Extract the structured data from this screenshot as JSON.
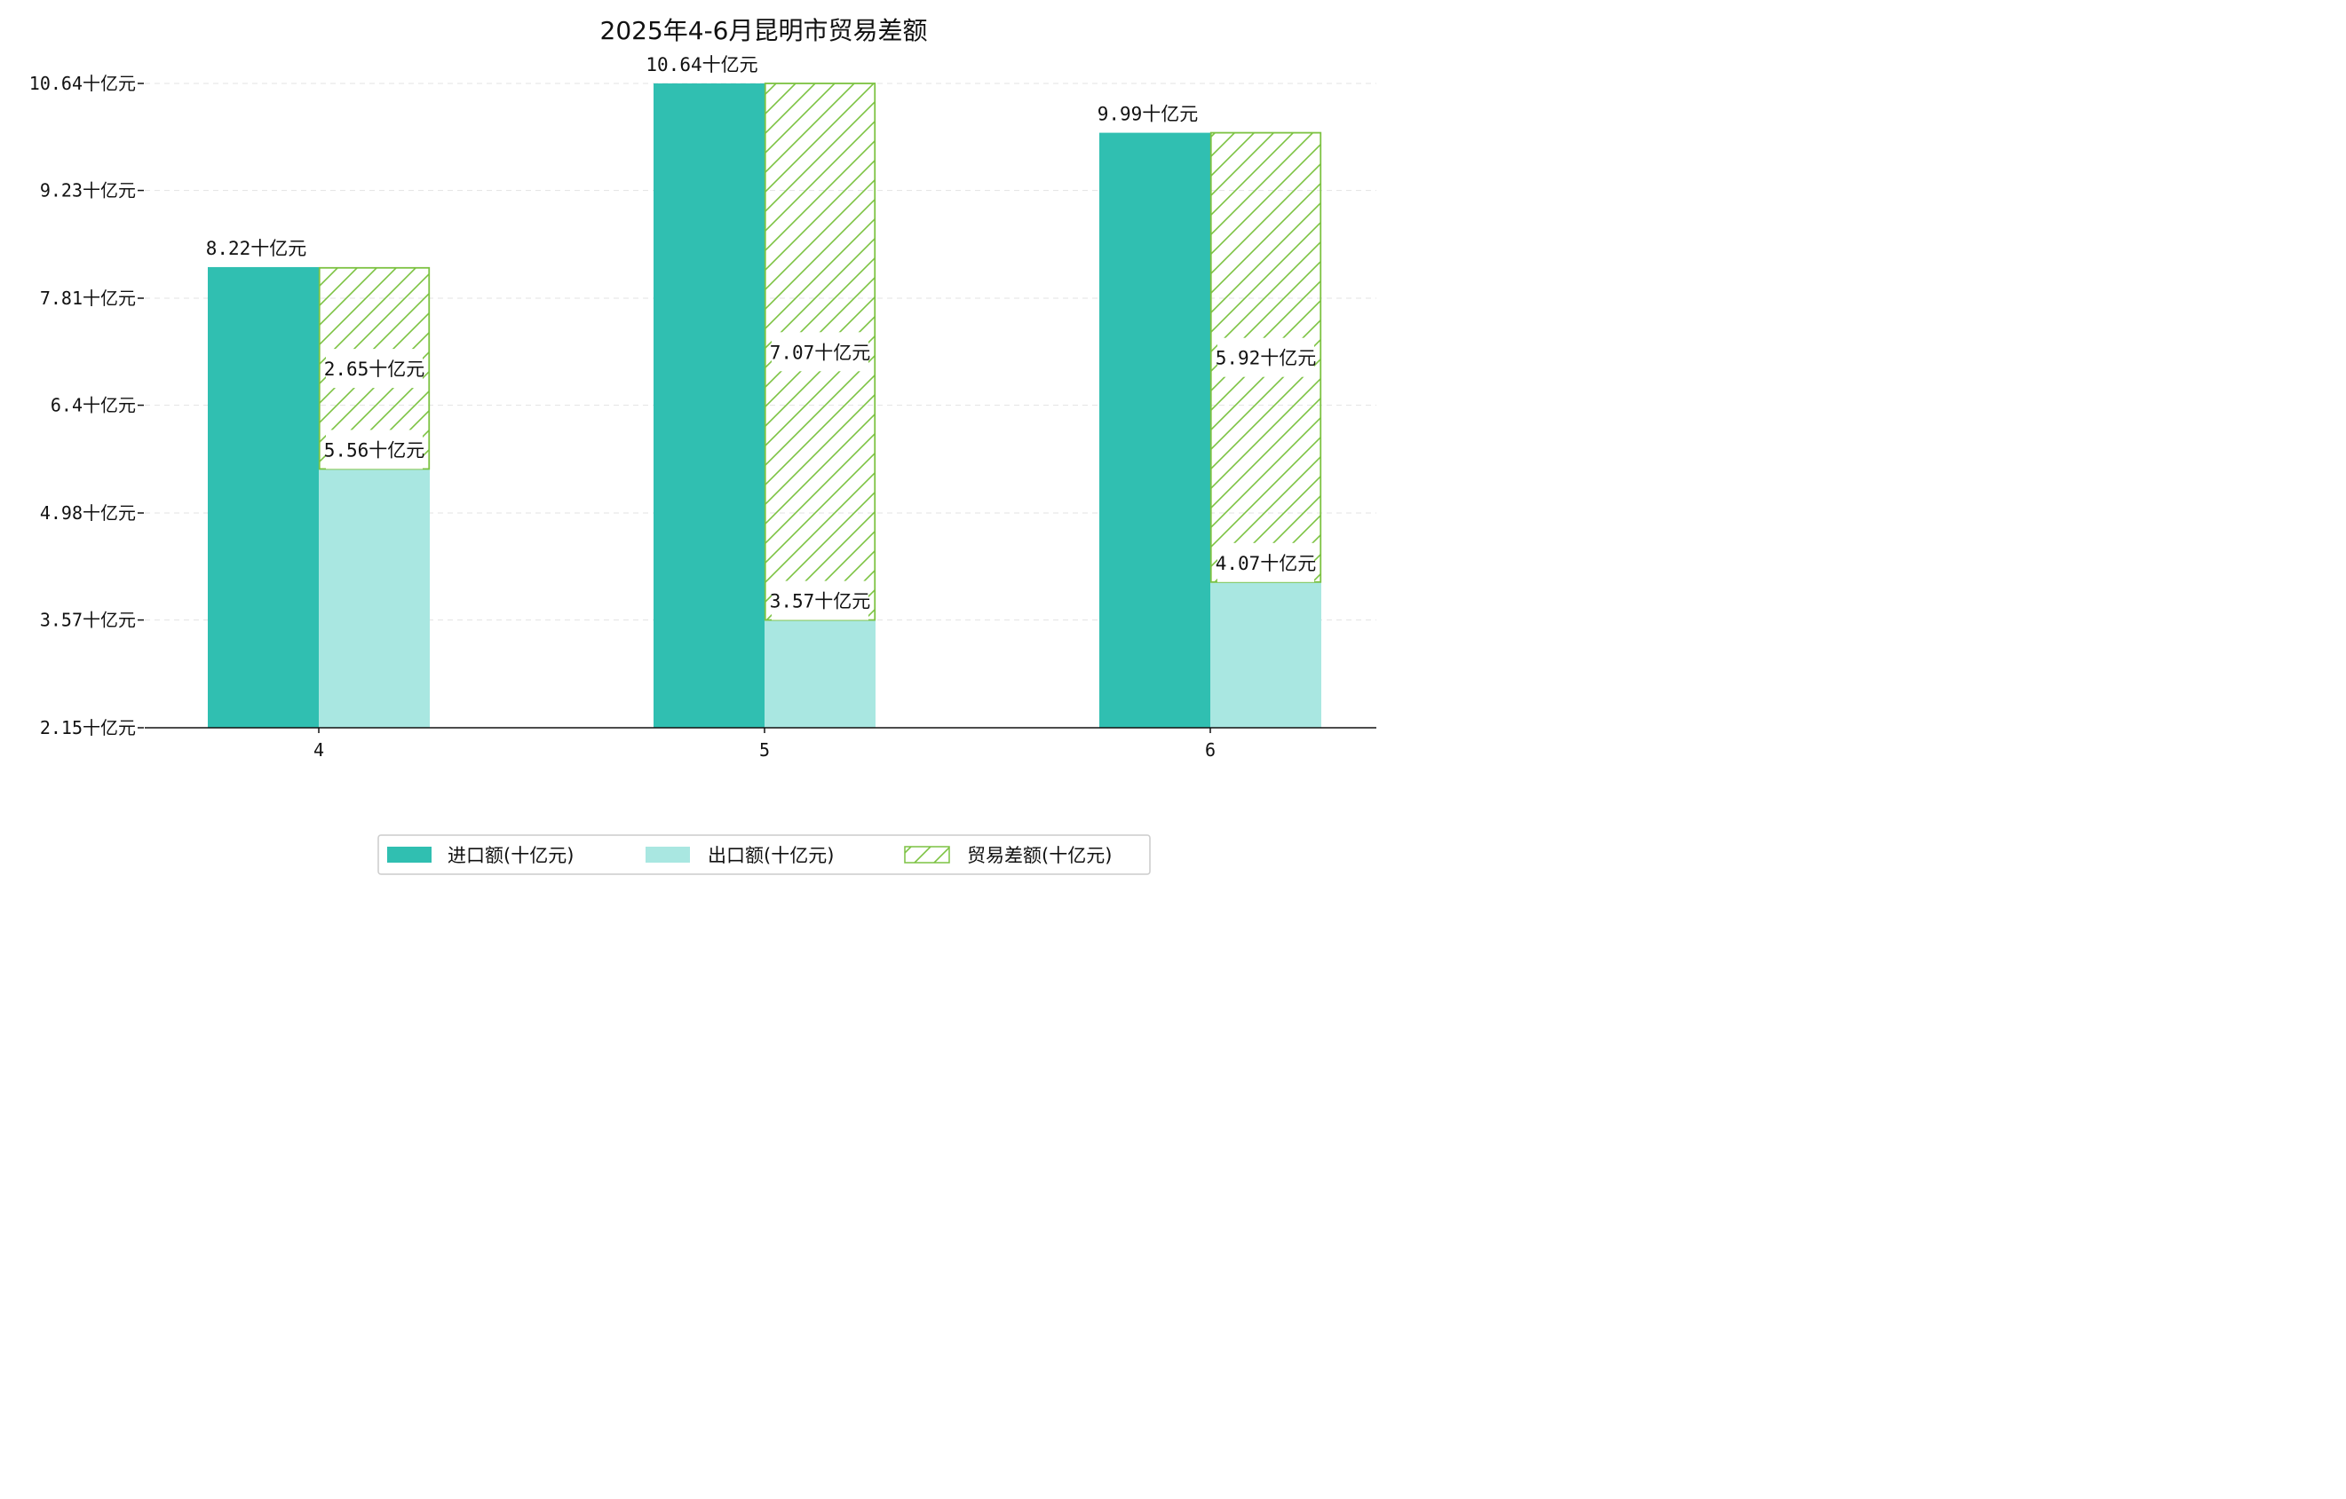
{
  "chart_data": {
    "type": "bar",
    "title": "2025年4-6月昆明市贸易差额",
    "categories": [
      "4",
      "5",
      "6"
    ],
    "unit_suffix": "十亿元",
    "series": [
      {
        "name": "进口额(十亿元)",
        "key": "import",
        "color": "#30bfb1",
        "values": [
          8.22,
          10.64,
          9.99
        ]
      },
      {
        "name": "出口额(十亿元)",
        "key": "export",
        "color": "#a9e7e1",
        "values": [
          5.56,
          3.57,
          4.07
        ]
      },
      {
        "name": "贸易差额(十亿元)",
        "key": "balance",
        "color": "#7cc242",
        "values": [
          2.65,
          7.07,
          5.92
        ],
        "stacked_on": "export",
        "hatch": true
      }
    ],
    "value_labels": {
      "import": [
        "8.22十亿元",
        "10.64十亿元",
        "9.99十亿元"
      ],
      "export": [
        "5.56十亿元",
        "3.57十亿元",
        "4.07十亿元"
      ],
      "balance": [
        "2.65十亿元",
        "7.07十亿元",
        "5.92十亿元"
      ]
    },
    "yticks": [
      2.15,
      3.57,
      4.98,
      6.4,
      7.81,
      9.23,
      10.64
    ],
    "ytick_labels": [
      "2.15十亿元",
      "3.57十亿元",
      "4.98十亿元",
      "6.4十亿元",
      "7.81十亿元",
      "9.23十亿元",
      "10.64十亿元"
    ],
    "ylim": [
      2.15,
      10.64
    ],
    "xlabel": "",
    "ylabel": "",
    "grid": "horizontal dashed",
    "legend": {
      "position": "bottom-center",
      "entries": [
        "进口额(十亿元)",
        "出口额(十亿元)",
        "贸易差额(十亿元)"
      ]
    }
  }
}
